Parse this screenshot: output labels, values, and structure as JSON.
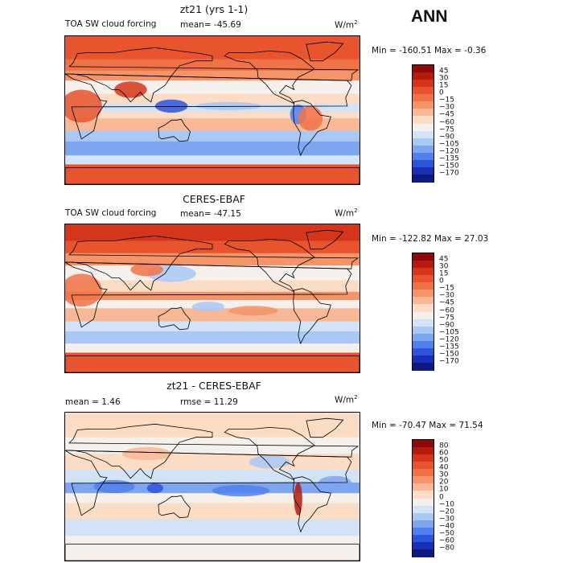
{
  "figure": {
    "season": "ANN"
  },
  "chart_data": [
    {
      "type": "heatmap",
      "title": "zt21 (yrs 1-1)",
      "variable": "TOA SW cloud forcing",
      "mean_text": "mean= -45.69",
      "units_base": "W/m",
      "units_exp": "2",
      "minmax_text": "Min = -160.51 Max = -0.36",
      "min": -160.51,
      "max": -0.36,
      "levels": [
        "45",
        "30",
        "15",
        "0",
        "-15",
        "-30",
        "-45",
        "-60",
        "-75",
        "-90",
        "-105",
        "-120",
        "-135",
        "-150",
        "-170"
      ],
      "colors": [
        "#8b0a0a",
        "#b31b0e",
        "#d5361b",
        "#e8542e",
        "#f07348",
        "#f59468",
        "#f8b896",
        "#fbdcc5",
        "#f6f0ec",
        "#d3e3f7",
        "#a9c8f4",
        "#7ea6f0",
        "#5080eb",
        "#2d55dc",
        "#1a2fb8",
        "#0d1a80"
      ]
    },
    {
      "type": "heatmap",
      "title": "CERES-EBAF",
      "variable": "TOA SW cloud forcing",
      "mean_text": "mean= -47.15",
      "units_base": "W/m",
      "units_exp": "2",
      "minmax_text": "Min = -122.82 Max = 27.03",
      "min": -122.82,
      "max": 27.03,
      "levels": [
        "45",
        "30",
        "15",
        "0",
        "-15",
        "-30",
        "-45",
        "-60",
        "-75",
        "-90",
        "-105",
        "-120",
        "-135",
        "-150",
        "-170"
      ],
      "colors": [
        "#8b0a0a",
        "#b31b0e",
        "#d5361b",
        "#e8542e",
        "#f07348",
        "#f59468",
        "#f8b896",
        "#fbdcc5",
        "#f6f0ec",
        "#d3e3f7",
        "#a9c8f4",
        "#7ea6f0",
        "#5080eb",
        "#2d55dc",
        "#1a2fb8",
        "#0d1a80"
      ]
    },
    {
      "type": "heatmap",
      "title": "zt21 - CERES-EBAF",
      "mean_text": "mean = 1.46",
      "rmse_text": "rmse = 11.29",
      "units_base": "W/m",
      "units_exp": "2",
      "minmax_text": "Min = -70.47 Max = 71.54",
      "min": -70.47,
      "max": 71.54,
      "levels": [
        "80",
        "60",
        "50",
        "40",
        "30",
        "20",
        "10",
        "0",
        "-10",
        "-20",
        "-30",
        "-40",
        "-50",
        "-60",
        "-80"
      ],
      "colors": [
        "#8b0a0a",
        "#b31b0e",
        "#d5361b",
        "#e8542e",
        "#f07348",
        "#f59468",
        "#f8b896",
        "#fbdcc5",
        "#f6f0ec",
        "#d3e3f7",
        "#a9c8f4",
        "#7ea6f0",
        "#5080eb",
        "#2d55dc",
        "#1a2fb8",
        "#0d1a80"
      ]
    }
  ]
}
